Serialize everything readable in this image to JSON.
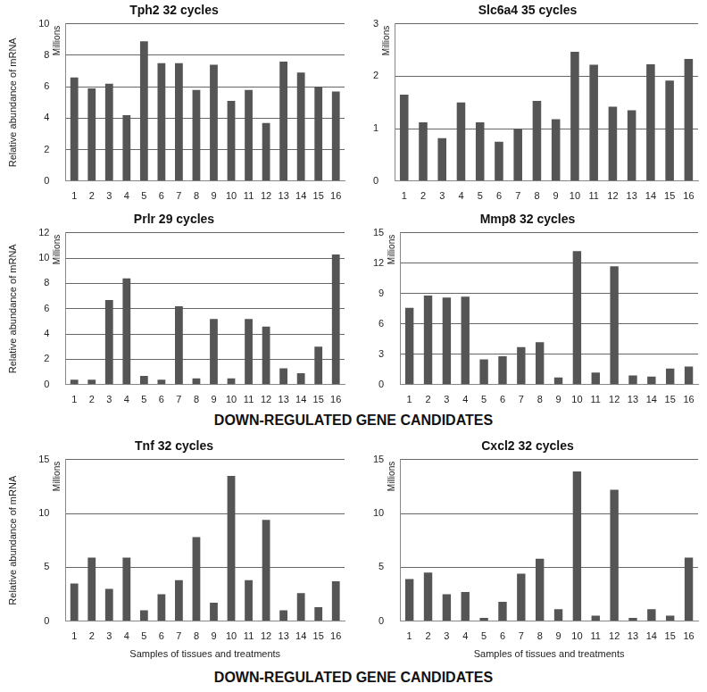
{
  "chart_data": [
    {
      "type": "bar",
      "title": "Tph2 32 cycles",
      "ylabel": "Relative abundance of mRNA",
      "annotations": [
        "Millions"
      ],
      "categories": [
        "1",
        "2",
        "3",
        "4",
        "5",
        "6",
        "7",
        "8",
        "9",
        "10",
        "11",
        "12",
        "13",
        "14",
        "15",
        "16"
      ],
      "values": [
        6.6,
        5.9,
        6.2,
        4.2,
        8.9,
        7.5,
        7.5,
        5.8,
        7.4,
        5.1,
        5.8,
        3.7,
        7.6,
        6.9,
        6.0,
        5.7
      ],
      "color": "#555555",
      "ylim": [
        0,
        10
      ],
      "yticks": [
        0,
        2,
        4,
        6,
        8,
        10
      ],
      "grid": true
    },
    {
      "type": "bar",
      "title": "Slc6a4 35 cycles",
      "annotations": [
        "Millions"
      ],
      "categories": [
        "1",
        "2",
        "3",
        "4",
        "5",
        "6",
        "7",
        "8",
        "9",
        "10",
        "11",
        "12",
        "13",
        "14",
        "15",
        "16"
      ],
      "values": [
        1.65,
        1.12,
        0.82,
        1.5,
        1.12,
        0.75,
        1.0,
        1.53,
        1.18,
        2.47,
        2.22,
        1.42,
        1.35,
        2.23,
        1.92,
        2.33
      ],
      "color": "#555555",
      "ylim": [
        0,
        3
      ],
      "yticks": [
        0,
        1,
        2,
        3
      ],
      "grid": true
    },
    {
      "type": "bar",
      "title": "Prlr 29 cycles",
      "ylabel": "Relative abundance of mRNA",
      "annotations": [
        "Millions"
      ],
      "categories": [
        "1",
        "2",
        "3",
        "4",
        "5",
        "6",
        "7",
        "8",
        "9",
        "10",
        "11",
        "12",
        "13",
        "14",
        "15",
        "16"
      ],
      "values": [
        0.4,
        0.4,
        6.7,
        8.4,
        0.7,
        0.4,
        6.2,
        0.5,
        5.2,
        0.5,
        5.2,
        4.6,
        1.3,
        0.9,
        3.0,
        10.3
      ],
      "color": "#555555",
      "ylim": [
        0,
        12
      ],
      "yticks": [
        0,
        2,
        4,
        6,
        8,
        10,
        12
      ],
      "grid": true
    },
    {
      "type": "bar",
      "title": "Mmp8 32 cycles",
      "annotations": [
        "Millions"
      ],
      "categories": [
        "1",
        "2",
        "3",
        "4",
        "5",
        "6",
        "7",
        "8",
        "9",
        "10",
        "11",
        "12",
        "13",
        "14",
        "15",
        "16"
      ],
      "values": [
        7.6,
        8.8,
        8.6,
        8.7,
        2.5,
        2.8,
        3.7,
        4.2,
        0.7,
        13.2,
        1.2,
        11.7,
        0.9,
        0.8,
        1.6,
        1.8
      ],
      "color": "#555555",
      "ylim": [
        0,
        15
      ],
      "yticks": [
        0,
        3,
        6,
        9,
        12,
        15
      ],
      "grid": true
    },
    {
      "type": "bar",
      "title": "Tnf 32 cycles",
      "ylabel": "Relative abundance of mRNA",
      "xlabel": "Samples of tissues and treatments",
      "annotations": [
        "Millions"
      ],
      "categories": [
        "1",
        "2",
        "3",
        "4",
        "5",
        "6",
        "7",
        "8",
        "9",
        "10",
        "11",
        "12",
        "13",
        "14",
        "15",
        "16"
      ],
      "values": [
        3.5,
        5.9,
        3.0,
        5.9,
        1.0,
        2.5,
        3.8,
        7.8,
        1.7,
        13.5,
        3.8,
        9.4,
        1.0,
        2.6,
        1.3,
        3.7
      ],
      "color": "#555555",
      "ylim": [
        0,
        15
      ],
      "yticks": [
        0,
        5,
        10,
        15
      ],
      "grid": true
    },
    {
      "type": "bar",
      "title": "Cxcl2 32 cycles",
      "xlabel": "Samples of tissues and treatments",
      "annotations": [
        "Millions"
      ],
      "categories": [
        "1",
        "2",
        "3",
        "4",
        "5",
        "6",
        "7",
        "8",
        "9",
        "10",
        "11",
        "12",
        "13",
        "14",
        "15",
        "16"
      ],
      "values": [
        3.9,
        4.5,
        2.5,
        2.7,
        0.3,
        1.8,
        4.4,
        5.8,
        1.1,
        13.9,
        0.5,
        12.2,
        0.3,
        1.1,
        0.5,
        5.9
      ],
      "color": "#555555",
      "ylim": [
        0,
        15
      ],
      "yticks": [
        0,
        5,
        10,
        15
      ],
      "grid": true
    }
  ],
  "headings": [
    "DOWN-REGULATED GENE CANDIDATES",
    "DOWN-REGULATED GENE CANDIDATES"
  ]
}
